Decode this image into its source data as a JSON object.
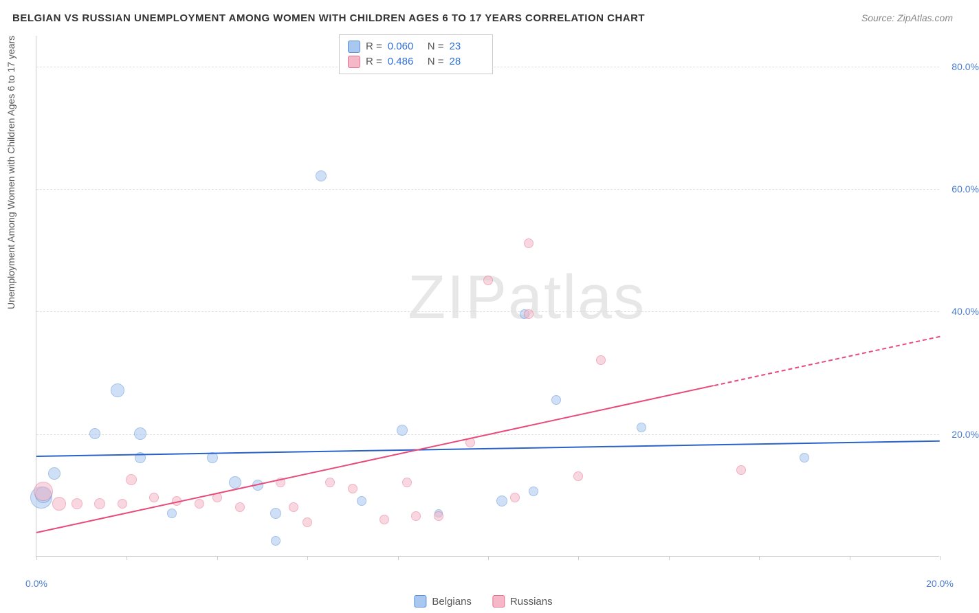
{
  "title": "BELGIAN VS RUSSIAN UNEMPLOYMENT AMONG WOMEN WITH CHILDREN AGES 6 TO 17 YEARS CORRELATION CHART",
  "source_label": "Source: ",
  "source_value": "ZipAtlas.com",
  "y_axis_label": "Unemployment Among Women with Children Ages 6 to 17 years",
  "watermark_bold": "ZIP",
  "watermark_thin": "atlas",
  "chart": {
    "type": "scatter",
    "background_color": "#ffffff",
    "grid_color": "#e0e0e0",
    "axis_color": "#cccccc",
    "tick_label_color": "#4a7bd0",
    "xlim": [
      0,
      20
    ],
    "ylim": [
      0,
      85
    ],
    "x_ticks": [
      0,
      2,
      4,
      6,
      8,
      10,
      12,
      14,
      16,
      18,
      20
    ],
    "x_tick_labels": {
      "0": "0.0%",
      "20": "20.0%"
    },
    "y_gridlines": [
      20,
      40,
      60,
      80
    ],
    "y_tick_labels": {
      "20": "20.0%",
      "40": "40.0%",
      "60": "60.0%",
      "80": "80.0%"
    },
    "series": [
      {
        "name": "Belgians",
        "fill": "#a8c8f0",
        "stroke": "#5a8fd8",
        "fill_opacity": 0.55,
        "trend_color": "#2962c8",
        "trend": {
          "x1": 0,
          "y1": 16.5,
          "x2": 20,
          "y2": 19.0
        },
        "trend_dash": null,
        "points": [
          {
            "x": 0.1,
            "y": 9.5,
            "r": 16
          },
          {
            "x": 0.15,
            "y": 10.0,
            "r": 12
          },
          {
            "x": 0.4,
            "y": 13.5,
            "r": 9
          },
          {
            "x": 1.3,
            "y": 20.0,
            "r": 8
          },
          {
            "x": 1.8,
            "y": 27.0,
            "r": 10
          },
          {
            "x": 2.3,
            "y": 20.0,
            "r": 9
          },
          {
            "x": 2.3,
            "y": 16.0,
            "r": 8
          },
          {
            "x": 3.0,
            "y": 7.0,
            "r": 7
          },
          {
            "x": 3.9,
            "y": 16.0,
            "r": 8
          },
          {
            "x": 4.4,
            "y": 12.0,
            "r": 9
          },
          {
            "x": 4.9,
            "y": 11.5,
            "r": 8
          },
          {
            "x": 5.3,
            "y": 7.0,
            "r": 8
          },
          {
            "x": 5.3,
            "y": 2.5,
            "r": 7
          },
          {
            "x": 6.3,
            "y": 62.0,
            "r": 8
          },
          {
            "x": 7.2,
            "y": 9.0,
            "r": 7
          },
          {
            "x": 8.1,
            "y": 20.5,
            "r": 8
          },
          {
            "x": 8.9,
            "y": 7.0,
            "r": 6
          },
          {
            "x": 10.3,
            "y": 9.0,
            "r": 8
          },
          {
            "x": 11.0,
            "y": 10.5,
            "r": 7
          },
          {
            "x": 11.5,
            "y": 25.5,
            "r": 7
          },
          {
            "x": 13.4,
            "y": 21.0,
            "r": 7
          },
          {
            "x": 17.0,
            "y": 16.0,
            "r": 7
          },
          {
            "x": 10.8,
            "y": 39.5,
            "r": 7
          }
        ]
      },
      {
        "name": "Russians",
        "fill": "#f5b8c8",
        "stroke": "#e87090",
        "fill_opacity": 0.55,
        "trend_color": "#e84a7a",
        "trend": {
          "x1": 0,
          "y1": 4.0,
          "x2": 15.0,
          "y2": 28.0
        },
        "trend_dash": {
          "x1": 15.0,
          "y1": 28.0,
          "x2": 20.0,
          "y2": 36.0
        },
        "points": [
          {
            "x": 0.15,
            "y": 10.5,
            "r": 14
          },
          {
            "x": 0.5,
            "y": 8.5,
            "r": 10
          },
          {
            "x": 0.9,
            "y": 8.5,
            "r": 8
          },
          {
            "x": 1.4,
            "y": 8.5,
            "r": 8
          },
          {
            "x": 1.9,
            "y": 8.5,
            "r": 7
          },
          {
            "x": 2.1,
            "y": 12.5,
            "r": 8
          },
          {
            "x": 2.6,
            "y": 9.5,
            "r": 7
          },
          {
            "x": 3.1,
            "y": 9.0,
            "r": 7
          },
          {
            "x": 3.6,
            "y": 8.5,
            "r": 7
          },
          {
            "x": 4.0,
            "y": 9.5,
            "r": 7
          },
          {
            "x": 4.5,
            "y": 8.0,
            "r": 7
          },
          {
            "x": 5.4,
            "y": 12.0,
            "r": 7
          },
          {
            "x": 5.7,
            "y": 8.0,
            "r": 7
          },
          {
            "x": 6.0,
            "y": 5.5,
            "r": 7
          },
          {
            "x": 6.5,
            "y": 12.0,
            "r": 7
          },
          {
            "x": 7.0,
            "y": 11.0,
            "r": 7
          },
          {
            "x": 7.7,
            "y": 6.0,
            "r": 7
          },
          {
            "x": 8.2,
            "y": 12.0,
            "r": 7
          },
          {
            "x": 8.4,
            "y": 6.5,
            "r": 7
          },
          {
            "x": 8.9,
            "y": 6.5,
            "r": 7
          },
          {
            "x": 9.6,
            "y": 18.5,
            "r": 7
          },
          {
            "x": 10.0,
            "y": 45.0,
            "r": 7
          },
          {
            "x": 10.6,
            "y": 9.5,
            "r": 7
          },
          {
            "x": 10.9,
            "y": 51.0,
            "r": 7
          },
          {
            "x": 10.9,
            "y": 39.5,
            "r": 7
          },
          {
            "x": 12.0,
            "y": 13.0,
            "r": 7
          },
          {
            "x": 12.5,
            "y": 32.0,
            "r": 7
          },
          {
            "x": 15.6,
            "y": 14.0,
            "r": 7
          }
        ]
      }
    ]
  },
  "stats_box": {
    "rows": [
      {
        "swatch_fill": "#a8c8f0",
        "swatch_stroke": "#5a8fd8",
        "r_label": "R =",
        "r_val": "0.060",
        "n_label": "N =",
        "n_val": "23"
      },
      {
        "swatch_fill": "#f5b8c8",
        "swatch_stroke": "#e87090",
        "r_label": "R =",
        "r_val": "0.486",
        "n_label": "N =",
        "n_val": "28"
      }
    ]
  },
  "legend": {
    "items": [
      {
        "swatch_fill": "#a8c8f0",
        "swatch_stroke": "#5a8fd8",
        "label": "Belgians"
      },
      {
        "swatch_fill": "#f5b8c8",
        "swatch_stroke": "#e87090",
        "label": "Russians"
      }
    ]
  }
}
